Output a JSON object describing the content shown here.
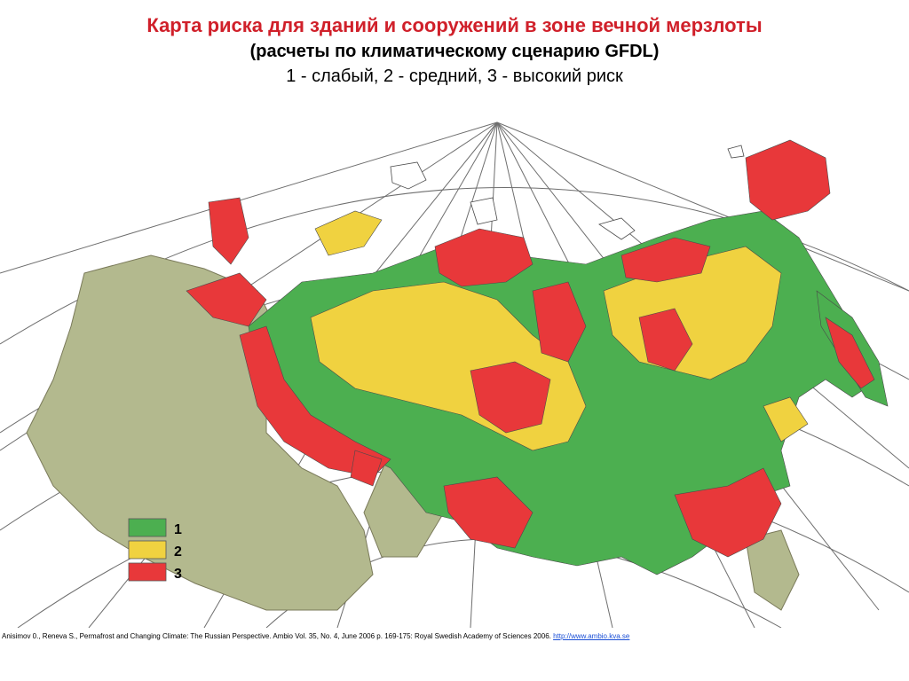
{
  "header": {
    "title": "Карта риска для зданий и сооружений в зоне вечной мерзлоты",
    "subtitle": "(расчеты по климатическому сценарию GFDL)",
    "scale_note": "1 - слабый, 2 - средний, 3 - высокий риск"
  },
  "legend": {
    "items": [
      {
        "label": "1",
        "color": "#4caf50"
      },
      {
        "label": "2",
        "color": "#f0d240"
      },
      {
        "label": "3",
        "color": "#e8383a"
      }
    ]
  },
  "colors": {
    "no_permafrost": "#b3b98e",
    "low_risk": "#4caf50",
    "medium_risk": "#f0d240",
    "high_risk": "#e8383a",
    "graticule": "#6e6e6e",
    "background": "#ffffff"
  },
  "citation": {
    "text": "Anisimov 0., Reneva S., Permafrost and Changing Climate: The Russian Perspective. Ambio Vol. 35, No. 4, June 2006 p. 169-175: Royal Swedish Academy of Sciences 2006.",
    "link_text": "http://www.ambio.kva.se"
  }
}
